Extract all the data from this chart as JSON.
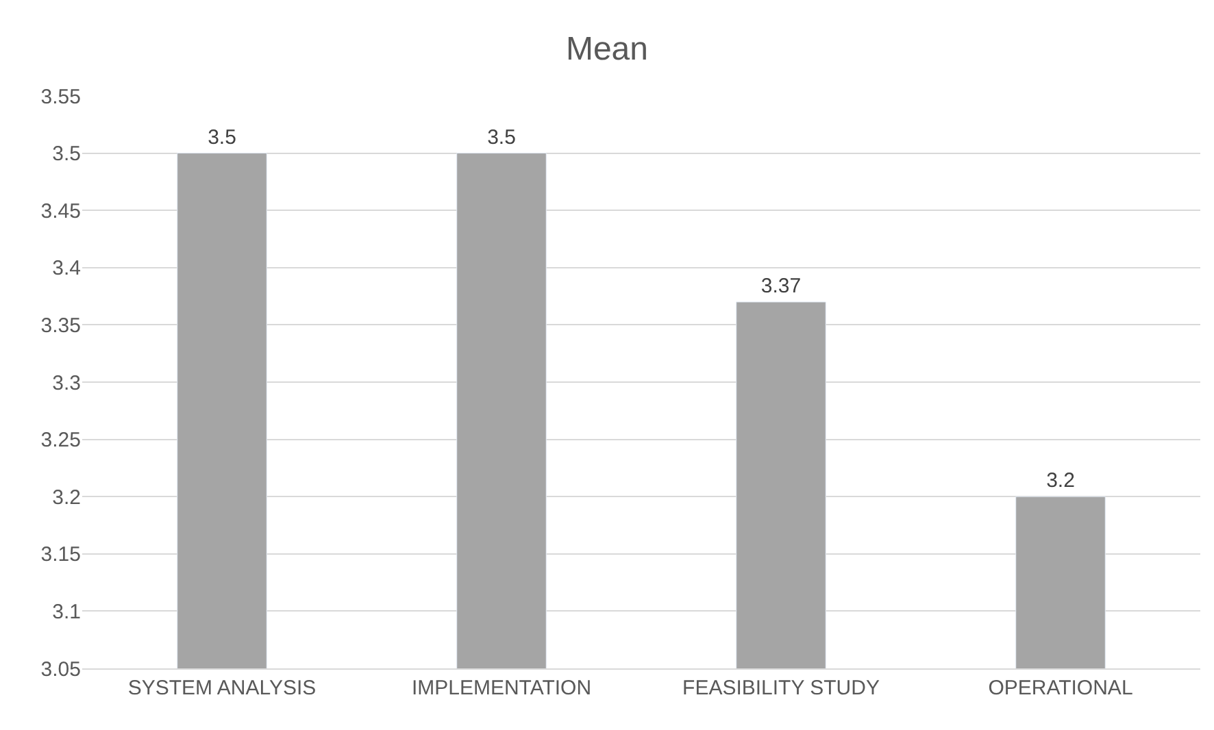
{
  "chart_data": {
    "type": "bar",
    "title": "Mean",
    "categories": [
      "SYSTEM ANALYSIS",
      "IMPLEMENTATION",
      "FEASIBILITY STUDY",
      "OPERATIONAL"
    ],
    "values": [
      3.5,
      3.5,
      3.37,
      3.2
    ],
    "color": "#a5a5a5",
    "ylim": [
      3.05,
      3.55
    ],
    "yticks": [
      3.05,
      3.1,
      3.15,
      3.2,
      3.25,
      3.3,
      3.35,
      3.4,
      3.45,
      3.5,
      3.55
    ],
    "grid": "y",
    "data_labels": true
  }
}
